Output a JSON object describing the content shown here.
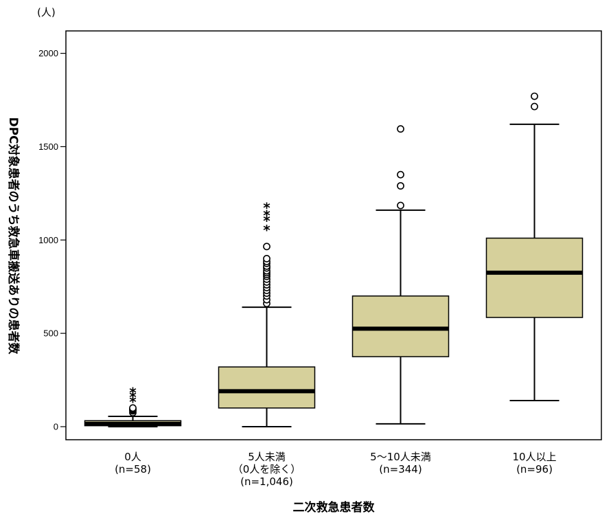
{
  "chart_data": {
    "type": "boxplot",
    "unit_label": "(人)",
    "ylabel": "DPC対象患者のうち救急車搬送ありの患者数",
    "xlabel": "二次救急患者数",
    "ylim": [
      -70,
      2120
    ],
    "y_ticks": [
      "0",
      "500",
      "1000",
      "1500",
      "2000"
    ],
    "box_color": "#d6d09b",
    "categories": [
      {
        "label_lines": [
          "0人",
          "(n=58)"
        ],
        "whisker_low": 0,
        "q1": 5,
        "median": 15,
        "q3": 32,
        "whisker_high": 55,
        "outliers": [
          75,
          85,
          90,
          95,
          100
        ],
        "extremes": [
          140,
          165,
          190
        ]
      },
      {
        "label_lines": [
          "5人未満",
          "（0人を除く）",
          "(n=1,046)"
        ],
        "whisker_low": 0,
        "q1": 100,
        "median": 190,
        "q3": 320,
        "whisker_high": 640,
        "outliers": [
          660,
          680,
          700,
          715,
          730,
          745,
          760,
          775,
          790,
          805,
          815,
          825,
          835,
          850,
          860,
          875,
          885,
          900,
          965
        ],
        "extremes": [
          1060,
          1110,
          1140,
          1180
        ]
      },
      {
        "label_lines": [
          "5～10人未満",
          "(n=344)"
        ],
        "whisker_low": 15,
        "q1": 375,
        "median": 525,
        "q3": 700,
        "whisker_high": 1160,
        "outliers": [
          1185,
          1290,
          1350,
          1595
        ],
        "extremes": []
      },
      {
        "label_lines": [
          "10人以上",
          "(n=96)"
        ],
        "whisker_low": 140,
        "q1": 585,
        "median": 825,
        "q3": 1010,
        "whisker_high": 1620,
        "outliers": [
          1715,
          1770
        ],
        "extremes": []
      }
    ]
  }
}
